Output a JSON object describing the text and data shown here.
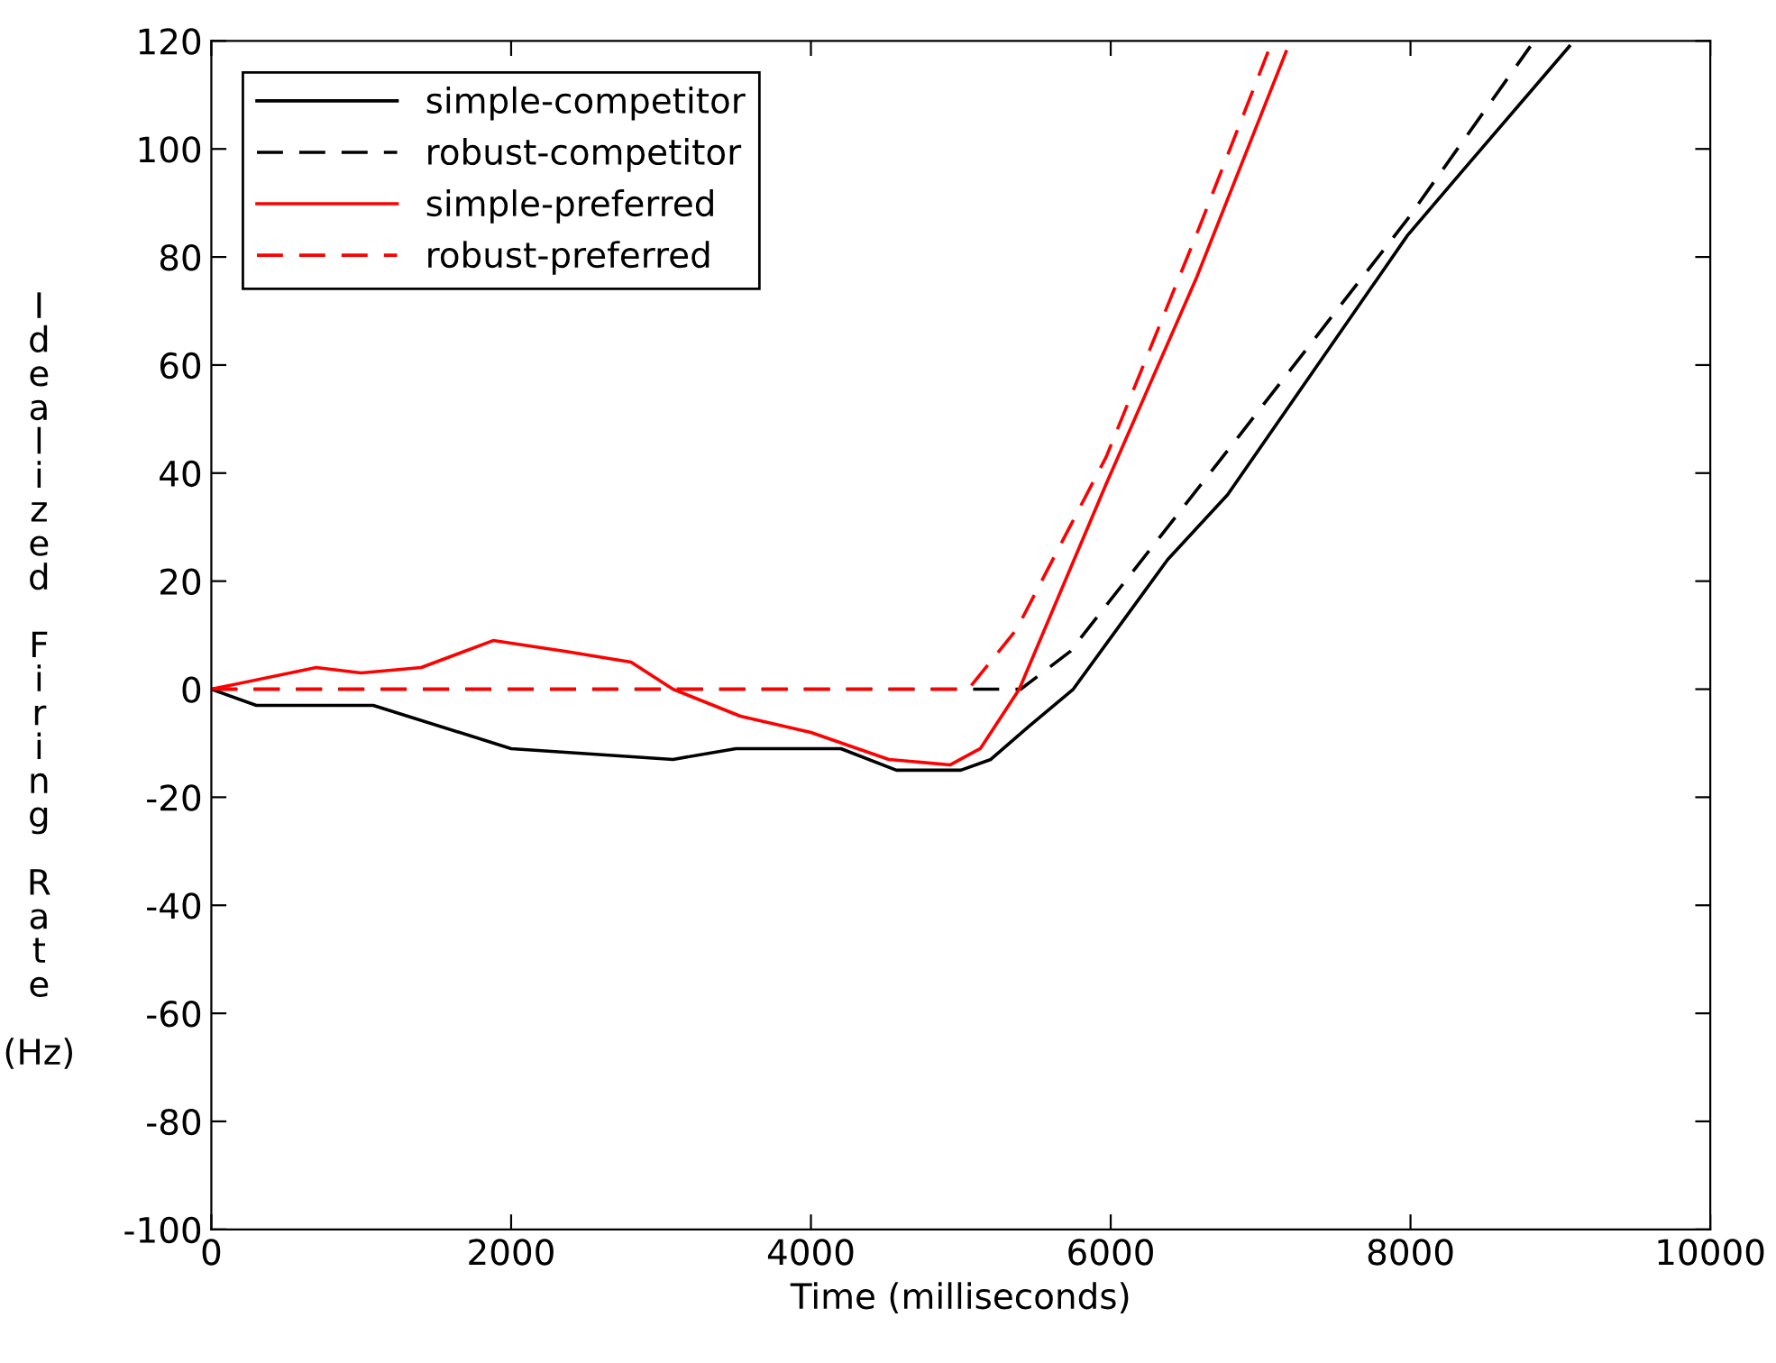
{
  "chart_data": {
    "type": "line",
    "xlabel": "Time (milliseconds)",
    "ylabel": "Idealized Firing Rate (Hz)",
    "xlim": [
      0,
      10000
    ],
    "ylim": [
      -100,
      120
    ],
    "xticks": [
      0,
      2000,
      4000,
      6000,
      8000,
      10000
    ],
    "yticks": [
      -100,
      -80,
      -60,
      -40,
      -20,
      0,
      20,
      40,
      60,
      80,
      100,
      120
    ],
    "grid": false,
    "legend": "top left",
    "marker": "none",
    "series": [
      {
        "name": "simple-competitor",
        "color": "#000000",
        "line_style": "solid",
        "x": [
          0,
          300,
          1080,
          2000,
          3080,
          3500,
          4200,
          4570,
          5000,
          5200,
          5450,
          5750,
          6380,
          6780,
          7580,
          7980,
          8380,
          9060
        ],
        "values": [
          0,
          -3,
          -3,
          -11,
          -13,
          -11,
          -11,
          -15,
          -15,
          -13,
          -7,
          0,
          24,
          36,
          68,
          84,
          97,
          119
        ]
      },
      {
        "name": "robust-competitor",
        "color": "#000000",
        "line_style": "dashed",
        "x": [
          0,
          5400,
          5730,
          6860,
          7980,
          8800
        ],
        "values": [
          0,
          0,
          7,
          47,
          87,
          119
        ]
      },
      {
        "name": "simple-preferred",
        "color": "#ff0000",
        "line_style": "solid",
        "x": [
          0,
          700,
          1000,
          1400,
          1880,
          2120,
          2360,
          2800,
          3080,
          3530,
          4000,
          4520,
          4930,
          5130,
          5390,
          5970,
          6570,
          7170
        ],
        "values": [
          0,
          4,
          3,
          4,
          9,
          8,
          7,
          5,
          0,
          -5,
          -8,
          -13,
          -14,
          -11,
          0,
          38,
          76,
          118
        ]
      },
      {
        "name": "robust-preferred",
        "color": "#ff0000",
        "line_style": "dashed",
        "x": [
          0,
          5050,
          5370,
          5970,
          6570,
          7050
        ],
        "values": [
          0,
          0,
          11,
          43,
          84,
          118
        ]
      }
    ]
  }
}
